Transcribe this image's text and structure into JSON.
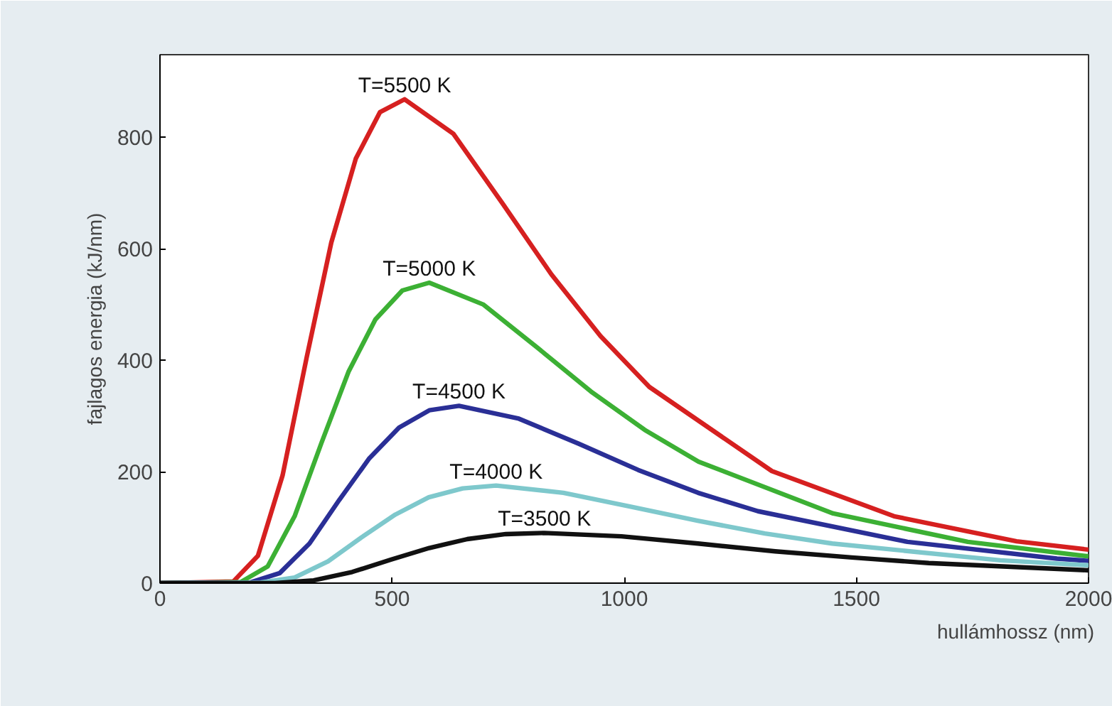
{
  "chart_data": {
    "type": "line",
    "xlabel": "hullámhossz (nm)",
    "ylabel": "fajlagos energia (kJ/nm)",
    "xlim": [
      0,
      2000
    ],
    "ylim": [
      0,
      948
    ],
    "xticks": [
      0,
      500,
      1000,
      1500,
      2000
    ],
    "yticks": [
      0,
      200,
      400,
      600,
      800
    ],
    "grid": false,
    "marker": "none",
    "line_style": "solid",
    "series": [
      {
        "name": "T=5500 K",
        "color": "#d62020",
        "x": [
          0,
          158,
          211,
          264,
          316,
          369,
          422,
          474,
          527,
          632,
          738,
          843,
          949,
          1054,
          1318,
          1581,
          1845,
          2000
        ],
        "values": [
          0,
          3,
          49,
          193,
          405,
          611,
          762,
          845,
          868,
          806,
          681,
          554,
          443,
          352,
          201,
          120,
          75,
          60
        ]
      },
      {
        "name": "T=5000 K",
        "color": "#3cb034",
        "x": [
          0,
          174,
          232,
          290,
          348,
          406,
          464,
          522,
          580,
          696,
          812,
          928,
          1044,
          1160,
          1450,
          1740,
          2000
        ],
        "values": [
          0,
          2,
          30,
          120,
          252,
          379,
          473,
          525,
          539,
          500,
          423,
          344,
          275,
          218,
          125,
          74,
          48
        ]
      },
      {
        "name": "T=4500 K",
        "color": "#2a2f96",
        "x": [
          0,
          193,
          258,
          322,
          386,
          451,
          515,
          580,
          644,
          773,
          902,
          1030,
          1159,
          1288,
          1610,
          1932,
          2000
        ],
        "values": [
          0,
          1,
          18,
          71,
          149,
          224,
          279,
          310,
          318,
          295,
          250,
          203,
          162,
          129,
          74,
          44,
          40
        ]
      },
      {
        "name": "T=4000 K",
        "color": "#7ec8cc",
        "x": [
          0,
          217,
          290,
          362,
          434,
          507,
          579,
          652,
          724,
          869,
          1014,
          1158,
          1303,
          1448,
          1810,
          2000
        ],
        "values": [
          0,
          1,
          10,
          39,
          82,
          123,
          154,
          170,
          175,
          162,
          137,
          112,
          89,
          71,
          41,
          32
        ]
      },
      {
        "name": "T=3500 K",
        "color": "#111111",
        "x": [
          0,
          248,
          331,
          414,
          497,
          580,
          662,
          745,
          828,
          994,
          1159,
          1325,
          1490,
          1656,
          2000
        ],
        "values": [
          0,
          0,
          5,
          20,
          42,
          63,
          79,
          88,
          90,
          84,
          71,
          57,
          46,
          36,
          23
        ]
      }
    ]
  }
}
